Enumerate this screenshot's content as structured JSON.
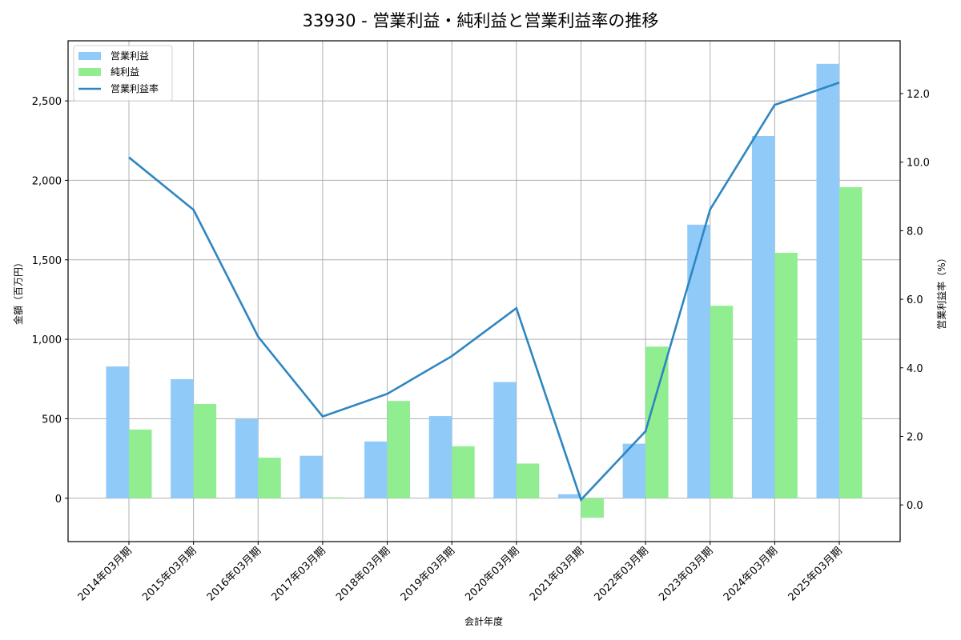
{
  "title": "33930 - 営業利益・純利益と営業利益率の推移",
  "colors": {
    "operating_profit": "#90CAF9",
    "net_profit": "#90EE90",
    "operating_margin": "#2E86C1",
    "grid": "#b0b0b0",
    "frame": "#000000"
  },
  "chart_data": {
    "type": "bar+line",
    "title": "33930 - 営業利益・純利益と営業利益率の推移",
    "xlabel": "会計年度",
    "ylabel": "金額（百万円）",
    "y2label": "営業利益率（%）",
    "categories": [
      "2014年03月期",
      "2015年03月期",
      "2016年03月期",
      "2017年03月期",
      "2018年03月期",
      "2019年03月期",
      "2020年03月期",
      "2021年03月期",
      "2022年03月期",
      "2023年03月期",
      "2024年03月期",
      "2025年03月期"
    ],
    "series": [
      {
        "name": "営業利益",
        "type": "bar",
        "axis": "left",
        "values": [
          829,
          749,
          500,
          267,
          357,
          517,
          731,
          25,
          343,
          1721,
          2279,
          2733
        ]
      },
      {
        "name": "純利益",
        "type": "bar",
        "axis": "left",
        "values": [
          432,
          593,
          255,
          5,
          612,
          327,
          218,
          -123,
          954,
          1211,
          1544,
          1957
        ]
      },
      {
        "name": "営業利益率",
        "type": "line",
        "axis": "right",
        "values": [
          10.14,
          8.61,
          4.91,
          2.58,
          3.24,
          4.34,
          5.74,
          0.15,
          2.15,
          8.62,
          11.67,
          12.32
        ]
      }
    ],
    "ylim": [
      -273,
      2878
    ],
    "y2lim": [
      -1.07,
      13.54
    ],
    "yticks": [
      0,
      500,
      1000,
      1500,
      2000,
      2500
    ],
    "ytick_labels": [
      "0",
      "500",
      "1,000",
      "1,500",
      "2,000",
      "2,500"
    ],
    "y2ticks": [
      0,
      2,
      4,
      6,
      8,
      10,
      12
    ],
    "y2tick_labels": [
      "0.0",
      "2.0",
      "4.0",
      "6.0",
      "8.0",
      "10.0",
      "12.0"
    ],
    "grid": true,
    "legend_position": "upper left",
    "legend": [
      "営業利益",
      "純利益",
      "営業利益率"
    ]
  }
}
